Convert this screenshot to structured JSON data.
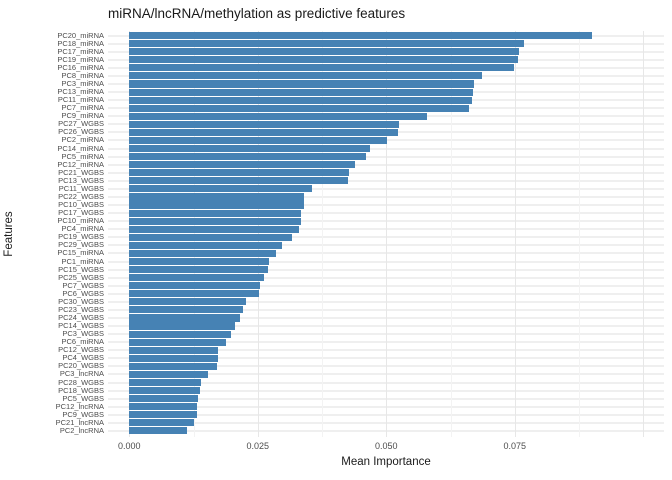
{
  "title": "miRNA/lncRNA/methylation as predictive features",
  "colors": {
    "bar": "#4682b4",
    "background": "#ffffff",
    "grid_major": "#e7e7e7",
    "grid_minor": "#f3f3f3",
    "grid_row": "#efefef",
    "tick_text": "#4d4d4d",
    "title_text": "#1a1a1a"
  },
  "chart_data": {
    "type": "bar",
    "orientation": "horizontal",
    "title": "miRNA/lncRNA/methylation as predictive features",
    "xlabel": "Mean Importance",
    "ylabel": "Features",
    "legend": "none",
    "grid": true,
    "xlim": [
      -0.004145,
      0.10403
    ],
    "x_major_ticks": [
      0.0,
      0.025,
      0.05,
      0.075,
      0.1
    ],
    "x_minor_ticks": [
      0.0125,
      0.0375,
      0.0625,
      0.0875
    ],
    "x_tick_labels": [
      "0.000",
      "0.025",
      "0.050",
      "0.075"
    ],
    "x_tick_label_values": [
      0.0,
      0.025,
      0.05,
      0.075
    ],
    "bar_color": "#4682b4",
    "categories": [
      "PC20_miRNA",
      "PC18_miRNA",
      "PC17_miRNA",
      "PC19_miRNA",
      "PC16_miRNA",
      "PC8_miRNA",
      "PC3_miRNA",
      "PC13_miRNA",
      "PC11_miRNA",
      "PC7_miRNA",
      "PC9_miRNA",
      "PC27_WGBS",
      "PC26_WGBS",
      "PC2_miRNA",
      "PC14_miRNA",
      "PC5_miRNA",
      "PC12_miRNA",
      "PC21_WGBS",
      "PC13_WGBS",
      "PC11_WGBS",
      "PC22_WGBS",
      "PC10_WGBS",
      "PC17_WGBS",
      "PC10_miRNA",
      "PC4_miRNA",
      "PC19_WGBS",
      "PC29_WGBS",
      "PC15_miRNA",
      "PC1_miRNA",
      "PC15_WGBS",
      "PC25_WGBS",
      "PC7_WGBS",
      "PC6_WGBS",
      "PC30_WGBS",
      "PC23_WGBS",
      "PC24_WGBS",
      "PC14_WGBS",
      "PC3_WGBS",
      "PC6_miRNA",
      "PC12_WGBS",
      "PC4_WGBS",
      "PC20_WGBS",
      "PC3_lncRNA",
      "PC28_WGBS",
      "PC18_WGBS",
      "PC5_WGBS",
      "PC12_lncRNA",
      "PC9_WGBS",
      "PC21_lncRNA",
      "PC2_lncRNA"
    ],
    "values": [
      0.0901,
      0.0767,
      0.0758,
      0.0756,
      0.0749,
      0.0686,
      0.0671,
      0.0669,
      0.0667,
      0.0661,
      0.0579,
      0.0525,
      0.0522,
      0.0502,
      0.0468,
      0.0461,
      0.0439,
      0.0428,
      0.0426,
      0.0355,
      0.034,
      0.0339,
      0.0335,
      0.0334,
      0.0331,
      0.0317,
      0.0297,
      0.0285,
      0.0272,
      0.027,
      0.0262,
      0.0254,
      0.0252,
      0.0227,
      0.0222,
      0.0216,
      0.0206,
      0.0198,
      0.0189,
      0.0173,
      0.0172,
      0.017,
      0.0154,
      0.014,
      0.0138,
      0.0133,
      0.0132,
      0.0131,
      0.0125,
      0.0113
    ]
  }
}
